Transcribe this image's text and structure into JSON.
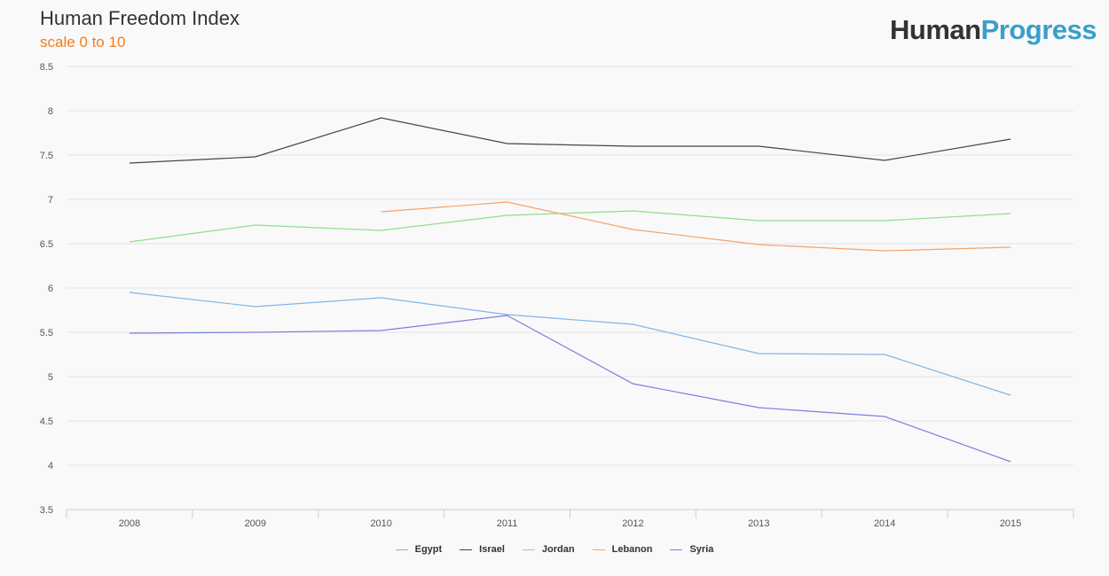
{
  "title": "Human Freedom Index",
  "subtitle": "scale 0 to 10",
  "logo": {
    "part1": "Human",
    "part2": "Progress"
  },
  "colors": {
    "subtitle": "#f07d1e",
    "grid": "#e3e3e3",
    "axis": "#c8cde6",
    "tick_text": "#555555"
  },
  "chart_data": {
    "type": "line",
    "x": [
      "2008",
      "2009",
      "2010",
      "2011",
      "2012",
      "2013",
      "2014",
      "2015"
    ],
    "ylim": [
      3.5,
      8.5
    ],
    "yticks": [
      "3.5",
      "4",
      "4.5",
      "5",
      "5.5",
      "6",
      "6.5",
      "7",
      "7.5",
      "8",
      "8.5"
    ],
    "grid": true,
    "legend_position": "bottom",
    "series": [
      {
        "name": "Egypt",
        "color": "#7fb5e8",
        "values": [
          5.95,
          5.79,
          5.89,
          5.7,
          5.59,
          5.26,
          5.25,
          4.79
        ]
      },
      {
        "name": "Israel",
        "color": "#454545",
        "values": [
          7.41,
          7.48,
          7.92,
          7.63,
          7.6,
          7.6,
          7.44,
          7.68
        ]
      },
      {
        "name": "Jordan",
        "color": "#8ee08a",
        "values": [
          6.52,
          6.71,
          6.65,
          6.82,
          6.87,
          6.76,
          6.76,
          6.84
        ]
      },
      {
        "name": "Lebanon",
        "color": "#f4a36b",
        "values": [
          null,
          null,
          6.86,
          6.97,
          6.66,
          6.49,
          6.42,
          6.46
        ]
      },
      {
        "name": "Syria",
        "color": "#7b7fe0",
        "values": [
          5.49,
          5.5,
          5.52,
          5.69,
          4.92,
          4.65,
          4.55,
          4.04
        ]
      }
    ]
  }
}
